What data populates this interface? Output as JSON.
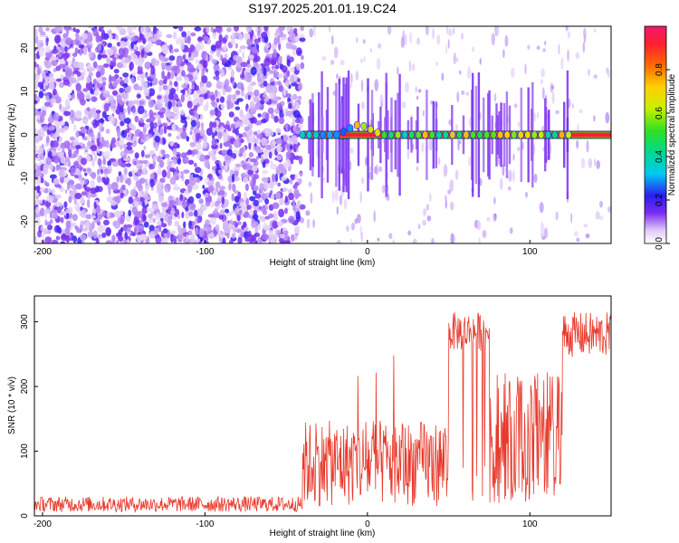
{
  "title": "S197.2025.201.01.19.C24",
  "chart_data": [
    {
      "type": "heatmap",
      "xlabel": "Height of straight line (km)",
      "ylabel": "Frequency (Hz)",
      "xlim": [
        -205,
        150
      ],
      "ylim": [
        -25,
        25
      ],
      "xticks": [
        -200,
        -100,
        0,
        100
      ],
      "yticks": [
        -20,
        -10,
        0,
        10,
        20
      ],
      "colorbar": {
        "label": "Normalized spectral amplitude",
        "ticks": [
          0.0,
          0.2,
          0.4,
          0.6,
          0.8
        ],
        "range": [
          0,
          1
        ]
      },
      "regions": [
        {
          "name": "noise",
          "x": [
            -205,
            -40
          ],
          "description": "broadband scattered amplitude 0.05-0.35"
        },
        {
          "name": "signal",
          "x": [
            -40,
            150
          ],
          "centre_frequency": 0,
          "amplitude": 0.9
        }
      ],
      "grid": false
    },
    {
      "type": "line",
      "xlabel": "Height of straight line (km)",
      "ylabel": "SNR (10 * v/v)",
      "xlim": [
        -205,
        150
      ],
      "ylim": [
        0,
        340
      ],
      "xticks": [
        -200,
        -100,
        0,
        100
      ],
      "yticks": [
        0,
        100,
        200,
        300
      ],
      "color": "#e8392b",
      "segments": [
        {
          "x": [
            -205,
            -40
          ],
          "level": 18
        },
        {
          "x": [
            -40,
            50
          ],
          "level": 120
        },
        {
          "x": [
            50,
            75
          ],
          "level": 285
        },
        {
          "x": [
            75,
            120
          ],
          "level": 150
        },
        {
          "x": [
            120,
            150
          ],
          "level": 280
        }
      ],
      "grid": false
    }
  ]
}
